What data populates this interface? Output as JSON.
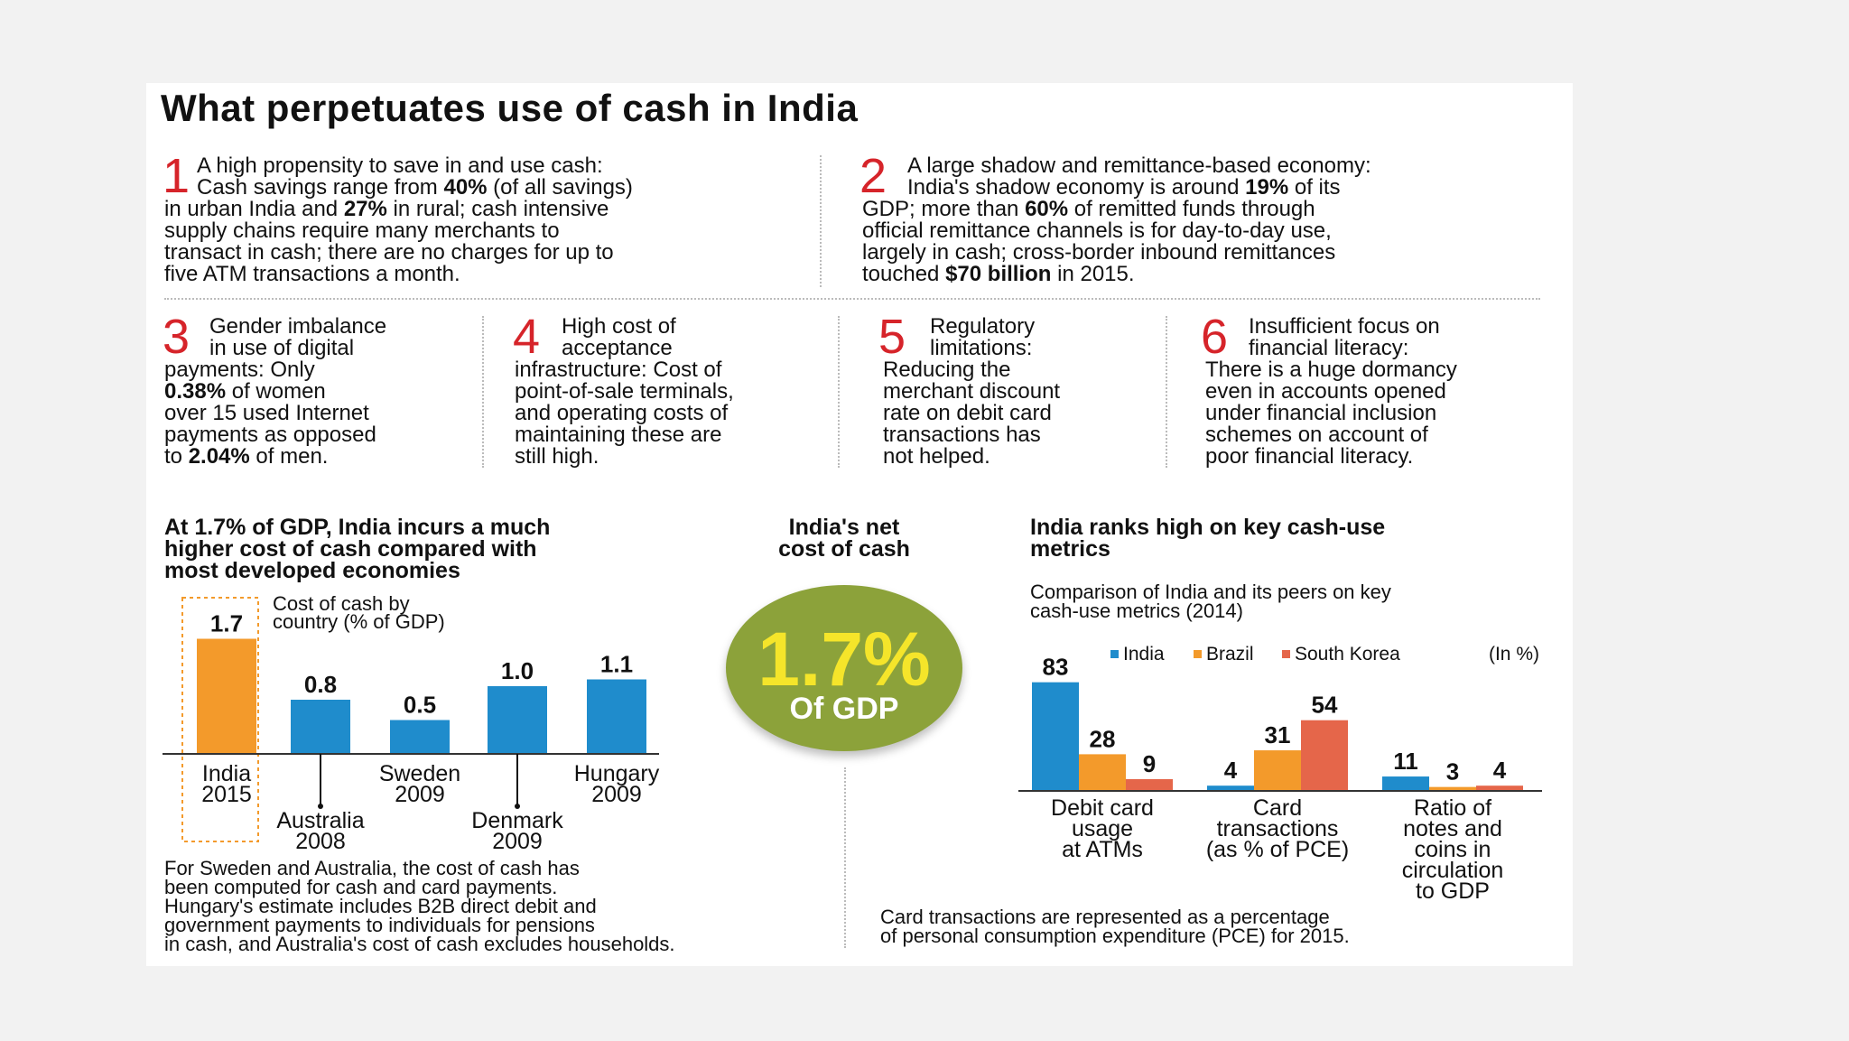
{
  "title": "What perpetuates use of cash in India",
  "points": [
    {
      "n": "1",
      "lines": [
        "A high propensity to save in and use cash:",
        "Cash savings range from <b>40%</b> (of all savings)",
        "in urban India and <b>27%</b> in rural; cash intensive",
        "supply chains require many merchants to",
        "transact in cash; there are no charges for up to",
        "five ATM transactions a month."
      ]
    },
    {
      "n": "2",
      "lines": [
        "A large shadow and remittance-based economy:",
        "India's shadow economy is around <b>19%</b> of its",
        "GDP; more than <b>60%</b> of remitted funds through",
        "official remittance channels is for day-to-day use,",
        "largely in cash; cross-border inbound remittances",
        "touched <b>$70 billion</b> in 2015."
      ]
    },
    {
      "n": "3",
      "lines": [
        "Gender imbalance",
        "in use of digital",
        "payments: Only",
        "<b>0.38%</b> of women",
        "over 15 used Internet",
        "payments as opposed",
        "to <b>2.04%</b> of men."
      ]
    },
    {
      "n": "4",
      "lines": [
        "High cost of",
        "acceptance",
        "infrastructure: Cost of",
        "point-of-sale terminals,",
        "and operating costs of",
        "maintaining these are",
        "still high."
      ]
    },
    {
      "n": "5",
      "lines": [
        "Regulatory",
        "limitations:",
        "Reducing the",
        "merchant discount",
        "rate on debit card",
        "transactions has",
        "not helped."
      ]
    },
    {
      "n": "6",
      "lines": [
        "Insufficient focus on",
        "financial literacy:",
        "There is a huge dormancy",
        "even in accounts opened",
        "under financial inclusion",
        "schemes on account of",
        "poor financial literacy."
      ]
    }
  ],
  "left_section": {
    "heading": [
      "At 1.7% of GDP, India incurs a much",
      "higher cost of cash compared with",
      "most developed economies"
    ],
    "note": [
      "For Sweden and Australia, the cost of cash has",
      "been computed for cash and card payments.",
      "Hungary's estimate includes B2B direct debit and",
      "government payments to individuals for pensions",
      "in cash, and Australia's cost of cash excludes households."
    ]
  },
  "middle_section": {
    "heading": [
      "India's net",
      "cost of cash"
    ],
    "value": "1.7%",
    "unit": "Of GDP"
  },
  "right_section": {
    "heading": [
      "India ranks high on key cash-use",
      "metrics"
    ],
    "note": [
      "Card transactions are represented as a percentage",
      "of personal consumption expenditure (PCE) for 2015."
    ]
  },
  "colors": {
    "india": "#1f8ccc",
    "brazil": "#f39a2b",
    "korea": "#e5664a",
    "red": "#d6242a",
    "badge": "#8ca23a",
    "yellow": "#f5e52a"
  },
  "chart_data": [
    {
      "type": "bar",
      "title": "Cost of cash by country (% of GDP)",
      "categories": [
        "India 2015",
        "Australia 2008",
        "Sweden 2009",
        "Denmark 2009",
        "Hungary 2009"
      ],
      "cat_lines": [
        [
          "India",
          "2015"
        ],
        [
          "Australia",
          "2008"
        ],
        [
          "Sweden",
          "2009"
        ],
        [
          "Denmark",
          "2009"
        ],
        [
          "Hungary",
          "2009"
        ]
      ],
      "values": [
        1.7,
        0.8,
        0.5,
        1.0,
        1.1
      ],
      "labels": [
        "1.7",
        "0.8",
        "0.5",
        "1.0",
        "1.1"
      ],
      "highlight": 0,
      "title_lines": [
        "Cost of cash by",
        "country (% of GDP)"
      ]
    },
    {
      "type": "bar",
      "subtitle": [
        "Comparison of India and its peers on key",
        "cash-use metrics (2014)"
      ],
      "unit_note": "(In %)",
      "categories": [
        "Debit card usage at ATMs",
        "Card transactions (as % of PCE)",
        "Ratio of notes and coins in circulation to GDP"
      ],
      "cat_lines": [
        [
          "Debit card",
          "usage",
          "at ATMs"
        ],
        [
          "Card",
          "transactions",
          "(as % of PCE)"
        ],
        [
          "Ratio of",
          "notes and",
          "coins in",
          "circulation",
          "to GDP"
        ]
      ],
      "series": [
        {
          "name": "India",
          "values": [
            83,
            4,
            11
          ]
        },
        {
          "name": "Brazil",
          "values": [
            28,
            31,
            3
          ]
        },
        {
          "name": "South Korea",
          "values": [
            9,
            54,
            4
          ]
        }
      ]
    }
  ]
}
